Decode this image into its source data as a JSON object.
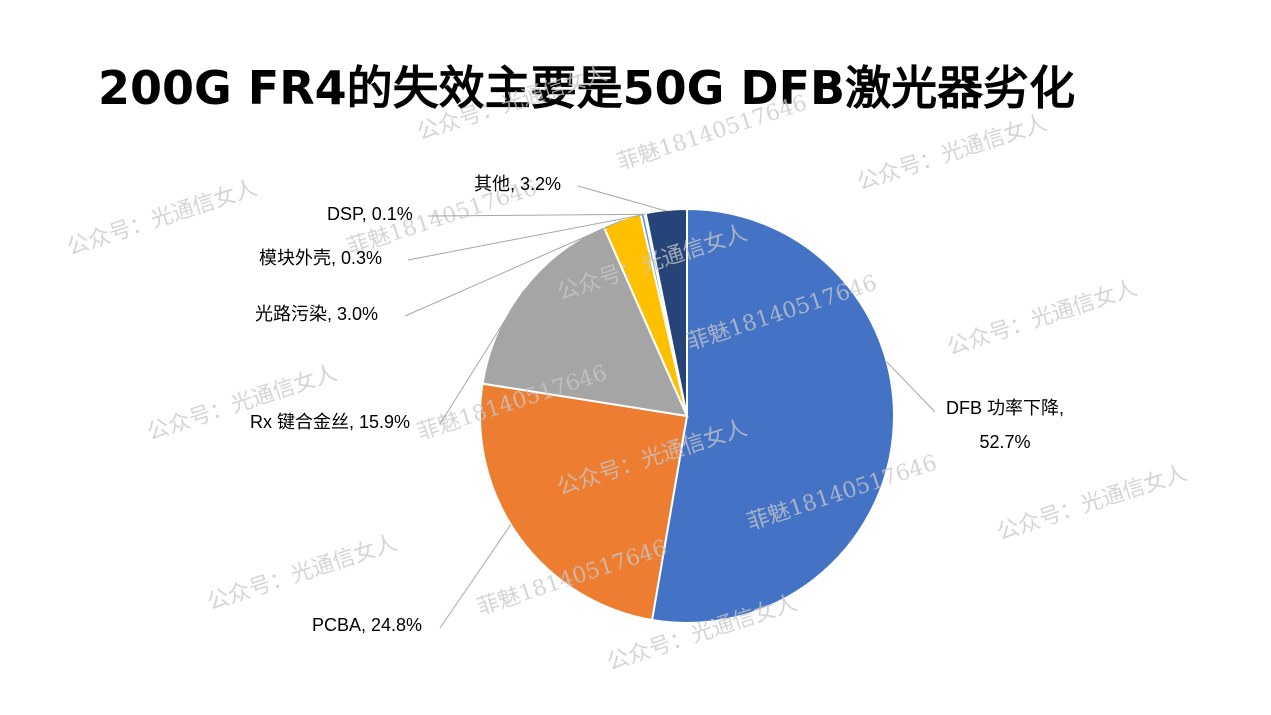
{
  "title": "200G FR4的失效主要是50G DFB激光器劣化",
  "chart_data": {
    "type": "pie",
    "title": "",
    "slices": [
      {
        "label": "DFB 功率下降",
        "value": 52.7,
        "display": "52.7%",
        "color": "#4472C4"
      },
      {
        "label": "PCBA",
        "value": 24.8,
        "display": "24.8%",
        "color": "#ED7D31"
      },
      {
        "label": "Rx 键合金丝",
        "value": 15.9,
        "display": "15.9%",
        "color": "#A5A5A5"
      },
      {
        "label": "光路污染",
        "value": 3.0,
        "display": "3.0%",
        "color": "#FFC000"
      },
      {
        "label": "模块外壳",
        "value": 0.3,
        "display": "0.3%",
        "color": "#5B9BD5"
      },
      {
        "label": "DSP",
        "value": 0.1,
        "display": "0.1%",
        "color": "#70AD47"
      },
      {
        "label": "其他",
        "value": 3.2,
        "display": "3.2%",
        "color": "#264478"
      }
    ],
    "legend": "none",
    "data_labels": "outside with leader lines"
  },
  "watermarks": {
    "account": "公众号：光通信女人",
    "phone": "菲魅18140517646"
  }
}
